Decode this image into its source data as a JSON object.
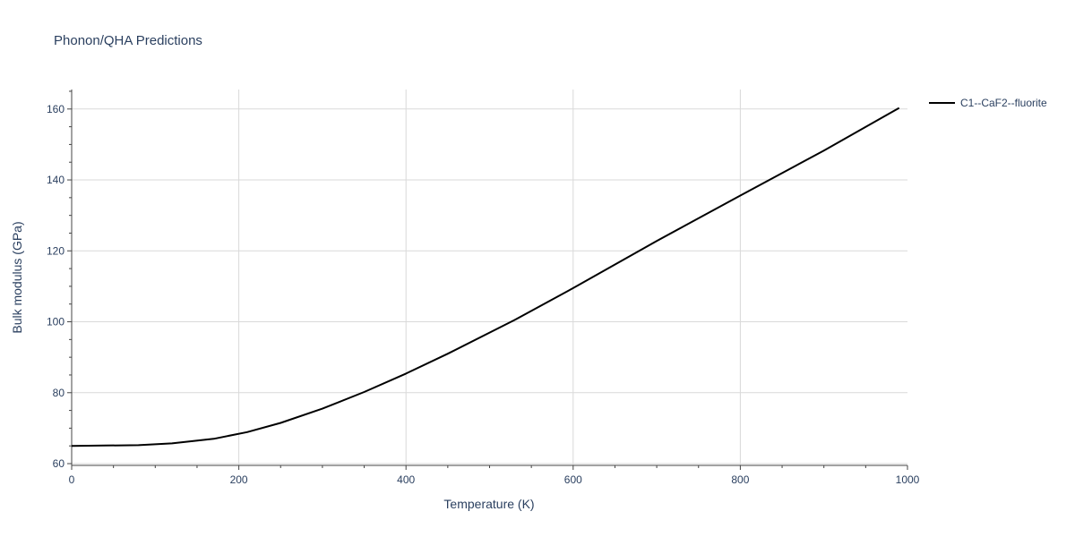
{
  "chart_data": {
    "type": "line",
    "title": "Phonon/QHA Predictions",
    "xlabel": "Temperature (K)",
    "ylabel": "Bulk modulus (GPa)",
    "xlim": [
      0,
      1000
    ],
    "ylim": [
      59.5,
      165.5
    ],
    "xticks": [
      0,
      200,
      400,
      600,
      800,
      1000
    ],
    "yticks": [
      60,
      80,
      100,
      120,
      140,
      160
    ],
    "grid": true,
    "legend_position": "top-right",
    "series": [
      {
        "name": "C1--CaF2--fluorite",
        "color": "#000000",
        "x": [
          0,
          40,
          80,
          120,
          170,
          210,
          250,
          300,
          350,
          400,
          450,
          530,
          600,
          700,
          800,
          900,
          990
        ],
        "y": [
          65.0,
          65.1,
          65.2,
          65.7,
          67.0,
          68.9,
          71.5,
          75.5,
          80.2,
          85.4,
          91.0,
          100.5,
          109.5,
          122.8,
          135.6,
          148.3,
          160.3
        ]
      }
    ]
  }
}
